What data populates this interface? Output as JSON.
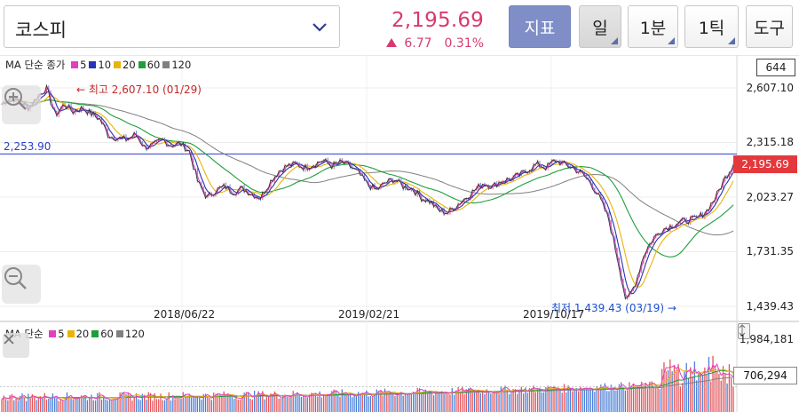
{
  "toolbar": {
    "market_name": "코스피",
    "price": "2,195.69",
    "change": "6.77",
    "change_pct": "0.31%",
    "buttons": {
      "indicator": "지표",
      "day": "일",
      "one_min": "1분",
      "one_tick": "1틱",
      "tools": "도구"
    }
  },
  "colors": {
    "up": "#d83a6c",
    "price_line": "#333333",
    "ma5": "#e040c0",
    "ma10": "#2634b5",
    "ma20": "#e8b40a",
    "ma60": "#1e9e3a",
    "ma120": "#808080",
    "ref_line": "#2b3cd0",
    "vol_up": "#e4555a",
    "vol_down": "#4a7fd8"
  },
  "price_chart": {
    "legend_title": "MA 단순 종가",
    "legend_items": [
      {
        "label": "5",
        "color": "#e040c0"
      },
      {
        "label": "10",
        "color": "#2634b5"
      },
      {
        "label": "20",
        "color": "#e8b40a"
      },
      {
        "label": "60",
        "color": "#1e9e3a"
      },
      {
        "label": "120",
        "color": "#808080"
      }
    ],
    "count": "644",
    "y_ticks": [
      "2,607.10",
      "2,315.18",
      "2,023.27",
      "1,731.35",
      "1,439.43"
    ],
    "last_price_tag": "2,195.69",
    "ref_line_value": "2,253.90",
    "high_annotation": "← 최고 2,607.10 (01/29)",
    "low_annotation": "최저 1,439.43 (03/19) →",
    "date_labels": [
      "2018/06/22",
      "2019/02/21",
      "2019/10/17"
    ]
  },
  "volume_chart": {
    "legend_title": "MA 단순",
    "legend_items": [
      {
        "label": "5",
        "color": "#e040c0"
      },
      {
        "label": "20",
        "color": "#e8b40a"
      },
      {
        "label": "60",
        "color": "#1e9e3a"
      },
      {
        "label": "120",
        "color": "#808080"
      }
    ],
    "y_max": "1,984,181",
    "last_volume_tag": "706,294"
  },
  "chart_data": {
    "type": "line",
    "title": "코스피",
    "x_date_labels": [
      "2018/06/22",
      "2019/02/21",
      "2019/10/17"
    ],
    "ylim": [
      1439.43,
      2607.1
    ],
    "y_ticks": [
      2607.1,
      2315.18,
      2023.27,
      1731.35,
      1439.43
    ],
    "series": [
      {
        "name": "종가",
        "values": [
          2520,
          2560,
          2530,
          2500,
          2560,
          2607,
          2460,
          2520,
          2480,
          2500,
          2470,
          2440,
          2350,
          2340,
          2330,
          2360,
          2290,
          2300,
          2330,
          2300,
          2310,
          2270,
          2100,
          2020,
          2060,
          2080,
          2050,
          2070,
          2040,
          2020,
          2100,
          2160,
          2190,
          2200,
          2180,
          2200,
          2220,
          2190,
          2210,
          2190,
          2150,
          2090,
          2060,
          2100,
          2120,
          2080,
          2070,
          2020,
          2000,
          1950,
          1940,
          1980,
          2020,
          2060,
          2100,
          2080,
          2110,
          2120,
          2140,
          2170,
          2200,
          2180,
          2220,
          2200,
          2180,
          2150,
          2100,
          2020,
          1910,
          1700,
          1460,
          1560,
          1720,
          1800,
          1850,
          1870,
          1890,
          1900,
          1910,
          1950,
          2020,
          2120,
          2196
        ]
      },
      {
        "name": "MA5",
        "values": []
      },
      {
        "name": "MA10",
        "values": []
      },
      {
        "name": "MA20",
        "values": []
      },
      {
        "name": "MA60",
        "values": []
      },
      {
        "name": "MA120",
        "values": []
      }
    ],
    "reference_line": 2253.9,
    "volume": {
      "ylim": [
        0,
        1984181
      ],
      "last": 706294
    }
  }
}
